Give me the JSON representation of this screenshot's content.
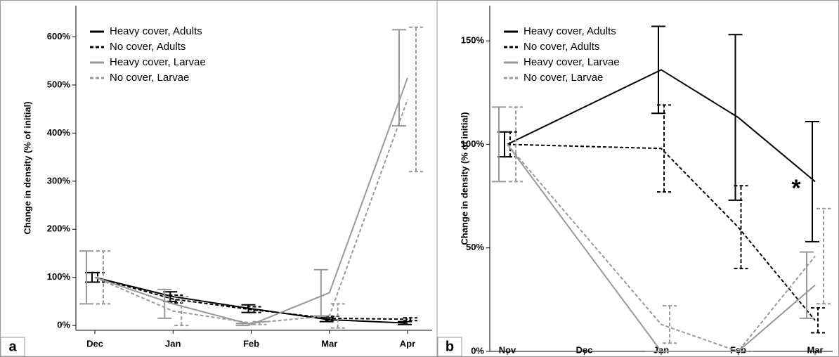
{
  "chart_data": [
    {
      "type": "line",
      "panel_label": "a",
      "y_label": "Change in density (% of initial)",
      "categories": [
        "Dec",
        "Jan",
        "Feb",
        "Mar",
        "Apr"
      ],
      "ylim": [
        -10,
        665
      ],
      "yticks": [
        {
          "value": 0,
          "label": "0%"
        },
        {
          "value": 100,
          "label": "100%"
        },
        {
          "value": 200,
          "label": "200%"
        },
        {
          "value": 300,
          "label": "300%"
        },
        {
          "value": 400,
          "label": "400%"
        },
        {
          "value": 500,
          "label": "500%"
        },
        {
          "value": 600,
          "label": "600%"
        }
      ],
      "series": [
        {
          "name": "Heavy cover, Adults",
          "color": "#000000",
          "style": "solid",
          "values": [
            100,
            60,
            35,
            12,
            5
          ],
          "errors": [
            10,
            10,
            8,
            4,
            3
          ]
        },
        {
          "name": "No cover, Adults",
          "color": "#000000",
          "style": "dashed",
          "values": [
            100,
            55,
            33,
            15,
            13
          ],
          "errors": [
            10,
            8,
            6,
            4,
            3
          ]
        },
        {
          "name": "Heavy cover, Larvae",
          "color": "#999999",
          "style": "solid",
          "values": [
            100,
            45,
            2,
            68,
            515
          ],
          "errors": [
            55,
            30,
            2,
            48,
            100
          ]
        },
        {
          "name": "No cover, Larvae",
          "color": "#999999",
          "style": "dashed",
          "values": [
            100,
            30,
            5,
            20,
            470
          ],
          "errors": [
            55,
            30,
            3,
            25,
            150
          ]
        }
      ]
    },
    {
      "type": "line",
      "panel_label": "b",
      "y_label": "Change in density (% of initial)",
      "annotation": "*",
      "categories": [
        "Nov",
        "Dec",
        "Jan",
        "Feb",
        "Mar"
      ],
      "ylim": [
        0,
        167
      ],
      "yticks": [
        {
          "value": 0,
          "label": "0%"
        },
        {
          "value": 50,
          "label": "50%"
        },
        {
          "value": 100,
          "label": "100%"
        },
        {
          "value": 150,
          "label": "150%"
        }
      ],
      "series": [
        {
          "name": "Heavy cover, Adults",
          "color": "#000000",
          "style": "solid",
          "x": [
            "Nov",
            "Jan",
            "Feb",
            "Mar"
          ],
          "values": [
            100,
            136,
            113,
            82
          ],
          "errors": [
            6,
            21,
            40,
            29
          ]
        },
        {
          "name": "No cover, Adults",
          "color": "#000000",
          "style": "dashed",
          "x": [
            "Nov",
            "Jan",
            "Feb",
            "Mar"
          ],
          "values": [
            100,
            98,
            60,
            15
          ],
          "errors": [
            6,
            21,
            20,
            6
          ]
        },
        {
          "name": "Heavy cover, Larvae",
          "color": "#999999",
          "style": "solid",
          "x": [
            "Nov",
            "Jan",
            "Feb",
            "Mar"
          ],
          "values": [
            100,
            0,
            0,
            32
          ],
          "errors": [
            18,
            0,
            0,
            16
          ]
        },
        {
          "name": "No cover, Larvae",
          "color": "#999999",
          "style": "dashed",
          "x": [
            "Nov",
            "Jan",
            "Feb",
            "Mar"
          ],
          "values": [
            100,
            13,
            0,
            46
          ],
          "errors": [
            18,
            9,
            0,
            23
          ]
        }
      ]
    }
  ]
}
